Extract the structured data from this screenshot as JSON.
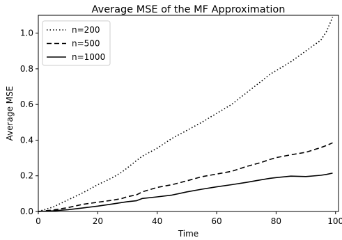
{
  "chart_data": {
    "type": "line",
    "title": "Average MSE of the MF Approximation",
    "xlabel": "Time",
    "ylabel": "Average MSE",
    "xlim": [
      0,
      101
    ],
    "ylim": [
      0,
      1.1
    ],
    "xticks": [
      0,
      20,
      40,
      60,
      80,
      100
    ],
    "xtick_labels": [
      "0",
      "20",
      "40",
      "60",
      "80",
      "100"
    ],
    "yticks": [
      0.0,
      0.2,
      0.4,
      0.6,
      0.8,
      1.0
    ],
    "ytick_labels": [
      "0.0",
      "0.2",
      "0.4",
      "0.6",
      "0.8",
      "1.0"
    ],
    "grid": false,
    "legend_position": "top-left",
    "x": [
      0,
      5,
      10,
      15,
      20,
      25,
      28,
      30,
      33,
      35,
      40,
      45,
      50,
      55,
      60,
      65,
      70,
      75,
      78,
      80,
      85,
      90,
      95,
      97,
      99
    ],
    "series": [
      {
        "name": "n=200",
        "style": "dotted",
        "values": [
          0.0,
          0.025,
          0.065,
          0.105,
          0.15,
          0.19,
          0.22,
          0.245,
          0.285,
          0.31,
          0.355,
          0.41,
          0.455,
          0.5,
          0.55,
          0.6,
          0.665,
          0.73,
          0.77,
          0.79,
          0.84,
          0.9,
          0.96,
          1.01,
          1.09
        ]
      },
      {
        "name": "n=500",
        "style": "dashed",
        "values": [
          0.0,
          0.008,
          0.022,
          0.04,
          0.052,
          0.063,
          0.072,
          0.083,
          0.093,
          0.11,
          0.135,
          0.15,
          0.172,
          0.195,
          0.21,
          0.225,
          0.252,
          0.275,
          0.292,
          0.302,
          0.318,
          0.332,
          0.358,
          0.37,
          0.385
        ]
      },
      {
        "name": "n=1000",
        "style": "solid",
        "values": [
          0.0,
          0.004,
          0.01,
          0.02,
          0.03,
          0.042,
          0.05,
          0.055,
          0.06,
          0.073,
          0.082,
          0.092,
          0.11,
          0.125,
          0.138,
          0.15,
          0.163,
          0.178,
          0.186,
          0.19,
          0.198,
          0.196,
          0.203,
          0.208,
          0.215
        ]
      }
    ]
  }
}
